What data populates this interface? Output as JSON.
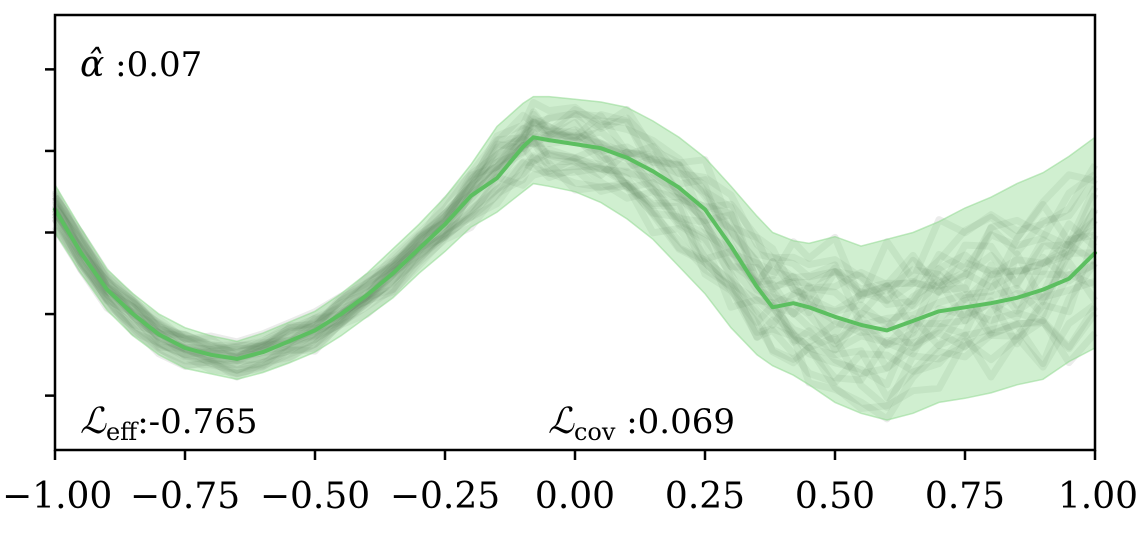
{
  "chart_data": {
    "type": "line",
    "title": "",
    "xlabel": "",
    "ylabel": "",
    "xlim": [
      -1.0,
      1.0
    ],
    "ylim": [
      -1.6,
      1.6
    ],
    "grid": false,
    "x_ticks": [
      -1.0,
      -0.75,
      -0.5,
      -0.25,
      0.0,
      0.25,
      0.5,
      0.75,
      1.0
    ],
    "x_tick_labels": [
      "−1.00",
      "−0.75",
      "−0.50",
      "−0.25",
      "0.00",
      "0.25",
      "0.50",
      "0.75",
      "1.00"
    ],
    "y_ticks": [
      -1.2,
      -0.6,
      0.0,
      0.6,
      1.2
    ],
    "colors": {
      "mean_line": "#5cbf60",
      "band_fill": "#8fd88f",
      "samples": "#1e2a1e"
    },
    "series": [
      {
        "name": "prediction",
        "x": [
          -1.0,
          -0.95,
          -0.9,
          -0.85,
          -0.8,
          -0.75,
          -0.7,
          -0.65,
          -0.6,
          -0.55,
          -0.5,
          -0.45,
          -0.4,
          -0.35,
          -0.3,
          -0.25,
          -0.2,
          -0.15,
          -0.1,
          -0.08,
          -0.05,
          0.0,
          0.05,
          0.1,
          0.15,
          0.2,
          0.25,
          0.3,
          0.35,
          0.38,
          0.42,
          0.45,
          0.5,
          0.55,
          0.6,
          0.65,
          0.7,
          0.75,
          0.8,
          0.85,
          0.9,
          0.95,
          1.0
        ],
        "y": [
          0.17,
          -0.15,
          -0.42,
          -0.6,
          -0.75,
          -0.85,
          -0.9,
          -0.93,
          -0.88,
          -0.8,
          -0.72,
          -0.6,
          -0.46,
          -0.3,
          -0.12,
          0.06,
          0.27,
          0.4,
          0.63,
          0.7,
          0.68,
          0.65,
          0.62,
          0.55,
          0.45,
          0.33,
          0.17,
          -0.1,
          -0.4,
          -0.55,
          -0.52,
          -0.55,
          -0.62,
          -0.68,
          -0.72,
          -0.65,
          -0.58,
          -0.55,
          -0.52,
          -0.48,
          -0.42,
          -0.34,
          -0.15
        ]
      },
      {
        "name": "band_upper",
        "x": [
          -1.0,
          -0.95,
          -0.9,
          -0.85,
          -0.8,
          -0.75,
          -0.7,
          -0.65,
          -0.6,
          -0.55,
          -0.5,
          -0.45,
          -0.4,
          -0.35,
          -0.3,
          -0.25,
          -0.2,
          -0.15,
          -0.1,
          -0.08,
          -0.05,
          0.0,
          0.05,
          0.1,
          0.15,
          0.2,
          0.25,
          0.3,
          0.35,
          0.38,
          0.42,
          0.45,
          0.5,
          0.55,
          0.6,
          0.65,
          0.7,
          0.75,
          0.8,
          0.85,
          0.9,
          0.95,
          1.0
        ],
        "y": [
          0.35,
          0.03,
          -0.27,
          -0.45,
          -0.6,
          -0.7,
          -0.76,
          -0.8,
          -0.74,
          -0.66,
          -0.58,
          -0.45,
          -0.3,
          -0.12,
          0.06,
          0.26,
          0.5,
          0.78,
          0.95,
          1.0,
          1.0,
          0.98,
          0.96,
          0.92,
          0.82,
          0.7,
          0.55,
          0.34,
          0.12,
          0.0,
          -0.06,
          -0.08,
          -0.03,
          -0.1,
          -0.05,
          0.0,
          0.08,
          0.18,
          0.26,
          0.36,
          0.44,
          0.56,
          0.7
        ]
      },
      {
        "name": "band_lower",
        "x": [
          -1.0,
          -0.95,
          -0.9,
          -0.85,
          -0.8,
          -0.75,
          -0.7,
          -0.65,
          -0.6,
          -0.55,
          -0.5,
          -0.45,
          -0.4,
          -0.35,
          -0.3,
          -0.25,
          -0.2,
          -0.15,
          -0.1,
          -0.08,
          -0.05,
          0.0,
          0.05,
          0.1,
          0.15,
          0.2,
          0.25,
          0.3,
          0.35,
          0.38,
          0.42,
          0.45,
          0.5,
          0.55,
          0.6,
          0.65,
          0.7,
          0.75,
          0.8,
          0.85,
          0.9,
          0.95,
          1.0
        ],
        "y": [
          0.0,
          -0.3,
          -0.57,
          -0.76,
          -0.9,
          -1.0,
          -1.04,
          -1.08,
          -1.03,
          -0.96,
          -0.88,
          -0.76,
          -0.62,
          -0.48,
          -0.3,
          -0.14,
          0.04,
          0.15,
          0.3,
          0.36,
          0.34,
          0.3,
          0.22,
          0.1,
          -0.05,
          -0.25,
          -0.45,
          -0.7,
          -0.9,
          -0.98,
          -1.05,
          -1.12,
          -1.25,
          -1.33,
          -1.38,
          -1.33,
          -1.25,
          -1.22,
          -1.18,
          -1.12,
          -1.08,
          -0.95,
          -0.85
        ]
      }
    ],
    "annotations": [
      {
        "name": "alpha-hat",
        "symbol": "α̂",
        "value_text": " :0.07",
        "position": "top-left"
      },
      {
        "name": "l-eff",
        "symbol": "ℒ",
        "subscript": "eff",
        "value_text": ":-0.765",
        "position": "bottom-left"
      },
      {
        "name": "l-cov",
        "symbol": "ℒ",
        "subscript": "cov",
        "value_text": " :0.069",
        "position": "bottom-center"
      }
    ]
  }
}
